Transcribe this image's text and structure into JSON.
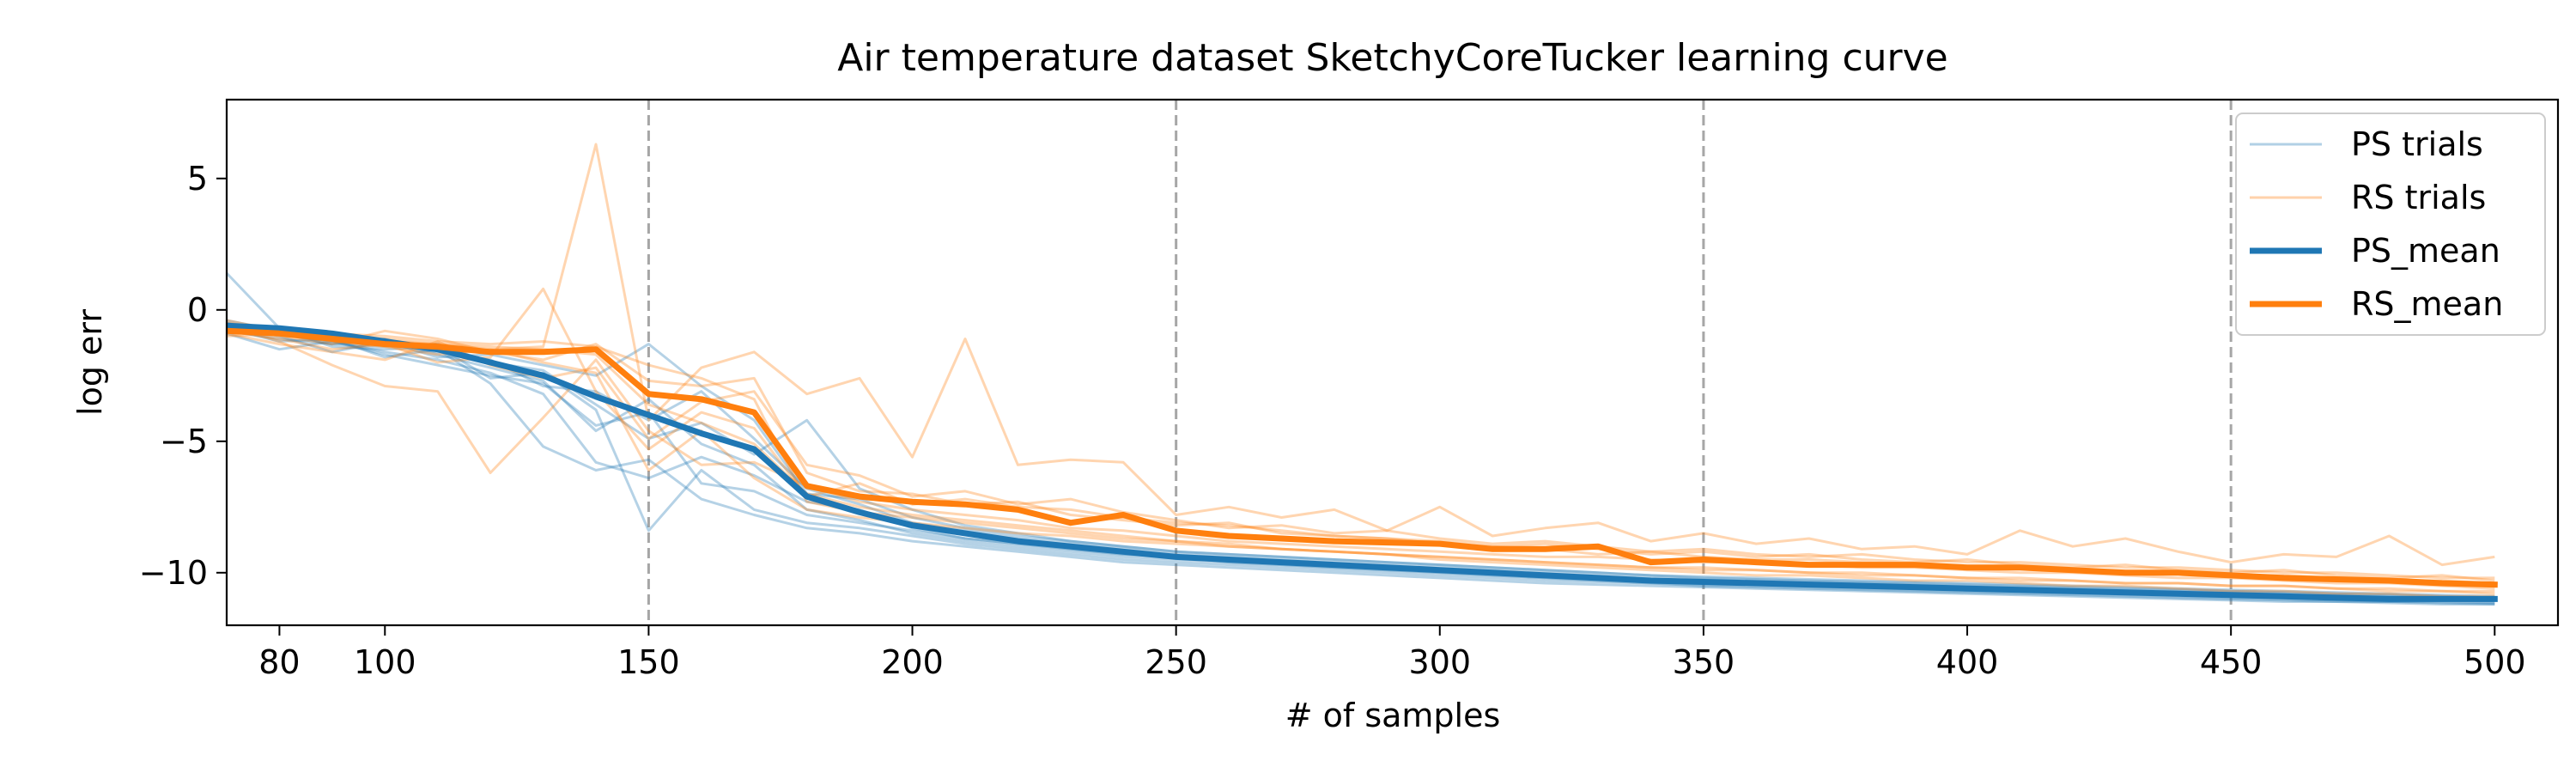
{
  "chart_data": {
    "type": "line",
    "title": "Air temperature dataset SketchyCoreTucker learning curve",
    "xlabel": "# of samples",
    "ylabel": "log err",
    "xlim": [
      70,
      512
    ],
    "ylim": [
      -12,
      8
    ],
    "xticks": [
      80,
      100,
      150,
      200,
      250,
      300,
      350,
      400,
      450,
      500
    ],
    "yticks": [
      5,
      0,
      -5,
      -10
    ],
    "ytick_labels": [
      "5",
      "0",
      "−5",
      "−10"
    ],
    "vlines": [
      150,
      250,
      350,
      450
    ],
    "grid": false,
    "legend_position": "top-right",
    "colors": {
      "ps": "#1f77b4",
      "rs": "#ff7f0e",
      "vline": "#a6a6a6"
    },
    "x": [
      70,
      80,
      90,
      100,
      110,
      120,
      130,
      140,
      150,
      160,
      170,
      180,
      190,
      200,
      210,
      220,
      230,
      240,
      250,
      260,
      270,
      280,
      290,
      300,
      310,
      320,
      330,
      340,
      350,
      360,
      370,
      380,
      390,
      400,
      410,
      420,
      430,
      440,
      450,
      460,
      470,
      480,
      490,
      500
    ],
    "series": [
      {
        "name": "PS_mean",
        "role": "mean",
        "color": "#1f77b4",
        "values": [
          -0.6,
          -0.7,
          -0.9,
          -1.2,
          -1.5,
          -2.0,
          -2.5,
          -3.3,
          -4.0,
          -4.7,
          -5.3,
          -7.1,
          -7.7,
          -8.2,
          -8.5,
          -8.8,
          -9.0,
          -9.2,
          -9.4,
          -9.5,
          -9.6,
          -9.7,
          -9.8,
          -9.9,
          -10.0,
          -10.1,
          -10.2,
          -10.3,
          -10.35,
          -10.4,
          -10.45,
          -10.5,
          -10.55,
          -10.6,
          -10.65,
          -10.7,
          -10.75,
          -10.8,
          -10.85,
          -10.9,
          -10.95,
          -11.0,
          -11.0,
          -11.0
        ]
      },
      {
        "name": "RS_mean",
        "role": "mean",
        "color": "#ff7f0e",
        "values": [
          -0.8,
          -0.9,
          -1.1,
          -1.3,
          -1.4,
          -1.6,
          -1.6,
          -1.5,
          -3.2,
          -3.4,
          -3.9,
          -6.7,
          -7.1,
          -7.3,
          -7.4,
          -7.6,
          -8.1,
          -7.8,
          -8.4,
          -8.6,
          -8.7,
          -8.8,
          -8.85,
          -8.9,
          -9.1,
          -9.1,
          -9.0,
          -9.6,
          -9.5,
          -9.6,
          -9.7,
          -9.7,
          -9.7,
          -9.8,
          -9.8,
          -9.9,
          -10.0,
          -10.0,
          -10.1,
          -10.2,
          -10.25,
          -10.3,
          -10.4,
          -10.45
        ]
      },
      {
        "name": "PS trials",
        "role": "trials",
        "color": "#1f77b4",
        "trials": [
          [
            -0.5,
            -0.9,
            -1.2,
            -1.6,
            -1.9,
            -2.4,
            -3.2,
            -5.8,
            -6.4,
            -5.6,
            -6.3,
            -7.3,
            -7.6,
            -8.3,
            -8.7,
            -8.9,
            -9.1,
            -9.3,
            -9.4,
            -9.6,
            -9.7,
            -9.8,
            -9.9,
            -10.0,
            -10.1,
            -10.2,
            -10.3,
            -10.4,
            -10.45,
            -10.5,
            -10.55,
            -10.6,
            -10.65,
            -10.7,
            -10.75,
            -10.8,
            -10.85,
            -10.9,
            -10.95,
            -11.0,
            -11.05,
            -11.1,
            -11.1,
            -11.15
          ],
          [
            -0.8,
            -1.1,
            -1.3,
            -1.1,
            -1.7,
            -2.2,
            -2.7,
            -4.6,
            -3.4,
            -5.1,
            -5.9,
            -7.6,
            -8.0,
            -8.5,
            -8.8,
            -9.0,
            -9.2,
            -9.4,
            -9.5,
            -9.6,
            -9.7,
            -9.8,
            -9.9,
            -10.0,
            -10.1,
            -10.2,
            -10.25,
            -10.3,
            -10.4,
            -10.45,
            -10.5,
            -10.55,
            -10.6,
            -10.65,
            -10.7,
            -10.75,
            -10.8,
            -10.85,
            -10.9,
            -10.95,
            -11.0,
            -11.0,
            -11.05,
            -11.1
          ],
          [
            -0.4,
            -0.8,
            -1.0,
            -1.3,
            -1.6,
            -1.9,
            -2.9,
            -3.1,
            -4.2,
            -3.1,
            -4.9,
            -6.8,
            -7.4,
            -8.1,
            -8.4,
            -8.7,
            -8.9,
            -9.1,
            -9.3,
            -9.4,
            -9.5,
            -9.6,
            -9.7,
            -9.8,
            -9.9,
            -10.0,
            -10.1,
            -10.2,
            -10.25,
            -10.3,
            -10.35,
            -10.4,
            -10.45,
            -10.5,
            -10.55,
            -10.6,
            -10.65,
            -10.7,
            -10.75,
            -10.8,
            -10.85,
            -10.9,
            -10.95,
            -11.0
          ],
          [
            1.4,
            -0.7,
            -1.4,
            -1.5,
            -1.4,
            -2.6,
            -2.4,
            -3.8,
            -8.4,
            -6.1,
            -7.6,
            -8.1,
            -8.3,
            -8.6,
            -8.9,
            -9.1,
            -9.3,
            -9.5,
            -9.6,
            -9.7,
            -9.8,
            -9.9,
            -10.0,
            -10.1,
            -10.2,
            -10.3,
            -10.35,
            -10.4,
            -10.5,
            -10.55,
            -10.6,
            -10.65,
            -10.7,
            -10.75,
            -10.8,
            -10.85,
            -10.9,
            -10.95,
            -11.0,
            -11.05,
            -11.1,
            -11.1,
            -11.15,
            -11.2
          ],
          [
            -0.6,
            -1.0,
            -1.6,
            -1.2,
            -1.8,
            -1.7,
            -2.1,
            -2.5,
            -1.3,
            -2.9,
            -4.2,
            -7.0,
            -7.2,
            -7.9,
            -8.3,
            -8.6,
            -8.8,
            -9.0,
            -9.2,
            -9.3,
            -9.4,
            -9.5,
            -9.6,
            -9.7,
            -9.8,
            -9.9,
            -10.0,
            -10.1,
            -10.15,
            -10.2,
            -10.25,
            -10.3,
            -10.35,
            -10.4,
            -10.45,
            -10.5,
            -10.55,
            -10.6,
            -10.65,
            -10.7,
            -10.75,
            -10.8,
            -10.85,
            -10.9
          ],
          [
            -0.7,
            -1.2,
            -1.1,
            -1.8,
            -1.5,
            -2.8,
            -5.2,
            -6.1,
            -5.7,
            -7.2,
            -7.8,
            -8.3,
            -8.5,
            -8.8,
            -9.0,
            -9.2,
            -9.4,
            -9.6,
            -9.7,
            -9.8,
            -9.9,
            -10.0,
            -10.1,
            -10.2,
            -10.3,
            -10.4,
            -10.45,
            -10.5,
            -10.55,
            -10.6,
            -10.65,
            -10.7,
            -10.75,
            -10.8,
            -10.85,
            -10.9,
            -10.95,
            -11.0,
            -11.05,
            -11.1,
            -11.1,
            -11.15,
            -11.2,
            -11.2
          ],
          [
            -0.5,
            -0.9,
            -1.3,
            -1.4,
            -1.3,
            -2.0,
            -2.3,
            -3.6,
            -4.9,
            -4.3,
            -5.5,
            -4.2,
            -6.8,
            -7.6,
            -8.2,
            -8.5,
            -8.8,
            -9.0,
            -9.2,
            -9.3,
            -9.4,
            -9.5,
            -9.6,
            -9.7,
            -9.8,
            -9.9,
            -10.0,
            -10.1,
            -10.2,
            -10.25,
            -10.3,
            -10.35,
            -10.4,
            -10.45,
            -10.5,
            -10.55,
            -10.6,
            -10.65,
            -10.7,
            -10.75,
            -10.8,
            -10.85,
            -10.9,
            -10.95
          ],
          [
            -0.9,
            -1.5,
            -1.2,
            -1.7,
            -2.1,
            -2.5,
            -2.8,
            -4.4,
            -3.9,
            -6.6,
            -6.9,
            -7.8,
            -8.1,
            -8.4,
            -8.7,
            -8.9,
            -9.1,
            -9.3,
            -9.4,
            -9.5,
            -9.6,
            -9.7,
            -9.8,
            -9.9,
            -10.0,
            -10.1,
            -10.2,
            -10.3,
            -10.35,
            -10.4,
            -10.45,
            -10.5,
            -10.55,
            -10.6,
            -10.65,
            -10.7,
            -10.75,
            -10.8,
            -10.85,
            -10.9,
            -10.95,
            -11.0,
            -11.0,
            -11.05
          ]
        ]
      },
      {
        "name": "RS trials",
        "role": "trials",
        "color": "#ff7f0e",
        "trials": [
          [
            -0.6,
            -1.2,
            -2.1,
            -2.9,
            -3.1,
            -6.2,
            -4.1,
            -1.9,
            -4.6,
            -5.9,
            -5.8,
            -6.7,
            -7.3,
            -7.6,
            -7.8,
            -8.0,
            -8.3,
            -8.4,
            -8.6,
            -8.8,
            -8.9,
            -9.0,
            -9.1,
            -9.2,
            -9.3,
            -9.4,
            -9.4,
            -9.5,
            -9.6,
            -9.6,
            -9.7,
            -9.8,
            -9.8,
            -9.9,
            -10.0,
            -10.0,
            -10.1,
            -10.2,
            -10.2,
            -10.3,
            -10.4,
            -10.4,
            -10.5,
            -10.6
          ],
          [
            -0.4,
            -0.8,
            -1.0,
            -1.2,
            -1.3,
            -1.5,
            -1.4,
            6.3,
            -4.2,
            -2.2,
            -1.6,
            -3.2,
            -2.6,
            -5.6,
            -1.1,
            -5.9,
            -5.7,
            -5.8,
            -7.8,
            -7.5,
            -7.9,
            -7.6,
            -8.4,
            -7.5,
            -8.6,
            -8.3,
            -8.1,
            -8.8,
            -8.5,
            -8.9,
            -8.7,
            -9.1,
            -9.0,
            -9.3,
            -8.4,
            -9.0,
            -8.7,
            -9.2,
            -9.6,
            -9.3,
            -9.4,
            -8.6,
            -9.7,
            -9.4
          ],
          [
            -0.8,
            -1.1,
            -1.5,
            -1.3,
            -2.0,
            -1.8,
            0.8,
            -3.1,
            -5.3,
            -3.9,
            -4.5,
            -7.1,
            -6.6,
            -7.4,
            -7.2,
            -7.5,
            -7.6,
            -7.9,
            -8.1,
            -8.2,
            -8.4,
            -8.6,
            -8.7,
            -8.9,
            -9.0,
            -9.1,
            -9.3,
            -9.2,
            -9.4,
            -9.5,
            -9.5,
            -9.6,
            -9.7,
            -9.8,
            -9.8,
            -9.9,
            -10.0,
            -10.0,
            -10.1,
            -10.1,
            -10.2,
            -10.3,
            -10.3,
            -10.4
          ],
          [
            -1.0,
            -0.9,
            -1.2,
            -1.4,
            -1.7,
            -1.5,
            -2.0,
            -2.4,
            -6.1,
            -4.6,
            -6.4,
            -7.6,
            -7.9,
            -8.1,
            -8.3,
            -8.5,
            -8.6,
            -8.8,
            -8.9,
            -9.0,
            -9.1,
            -9.2,
            -9.3,
            -9.4,
            -9.5,
            -9.6,
            -9.7,
            -9.8,
            -9.8,
            -9.9,
            -10.0,
            -10.0,
            -10.1,
            -10.2,
            -10.2,
            -10.3,
            -10.4,
            -10.4,
            -10.5,
            -10.5,
            -10.6,
            -10.7,
            -10.7,
            -10.8
          ],
          [
            -0.7,
            -1.0,
            -1.3,
            -0.8,
            -1.1,
            -1.6,
            -1.9,
            -1.3,
            -2.7,
            -2.9,
            -2.6,
            -6.2,
            -6.9,
            -7.0,
            -7.4,
            -7.3,
            -7.8,
            -8.0,
            -8.2,
            -8.1,
            -8.5,
            -8.6,
            -8.7,
            -8.8,
            -9.0,
            -8.9,
            -9.1,
            -9.3,
            -9.2,
            -9.4,
            -9.3,
            -9.5,
            -9.6,
            -9.5,
            -9.7,
            -9.8,
            -9.7,
            -9.9,
            -10.0,
            -9.9,
            -10.1,
            -10.2,
            -10.1,
            -10.3
          ],
          [
            -0.5,
            -0.8,
            -1.0,
            -1.1,
            -1.3,
            -1.4,
            -1.5,
            -1.7,
            -3.6,
            -4.3,
            -5.1,
            -7.0,
            -7.5,
            -7.8,
            -8.0,
            -8.2,
            -8.4,
            -8.6,
            -8.8,
            -8.9,
            -9.1,
            -9.2,
            -9.3,
            -9.5,
            -9.6,
            -9.7,
            -9.8,
            -9.9,
            -10.0,
            -10.1,
            -10.1,
            -10.2,
            -10.3,
            -10.3,
            -10.4,
            -10.5,
            -10.5,
            -10.6,
            -10.7,
            -10.7,
            -10.8,
            -10.8,
            -10.9,
            -10.9
          ],
          [
            -0.9,
            -1.3,
            -1.6,
            -1.9,
            -1.2,
            -2.1,
            -2.6,
            -2.2,
            -4.9,
            -3.5,
            -3.1,
            -5.9,
            -6.3,
            -7.1,
            -6.9,
            -7.4,
            -7.2,
            -7.7,
            -8.0,
            -8.3,
            -8.2,
            -8.5,
            -8.4,
            -8.7,
            -8.9,
            -8.8,
            -9.0,
            -9.2,
            -9.1,
            -9.3,
            -9.4,
            -9.3,
            -9.5,
            -9.6,
            -9.6,
            -9.7,
            -9.8,
            -9.8,
            -9.9,
            -10.0,
            -10.0,
            -10.1,
            -10.2,
            -10.2
          ],
          [
            -0.6,
            -0.7,
            -0.9,
            -1.0,
            -1.2,
            -1.3,
            -1.2,
            -1.4,
            -2.1,
            -2.6,
            -3.4,
            -7.3,
            -7.7,
            -7.9,
            -8.1,
            -8.3,
            -8.5,
            -8.7,
            -8.8,
            -9.0,
            -9.1,
            -9.2,
            -9.3,
            -9.4,
            -9.5,
            -9.6,
            -9.7,
            -9.8,
            -9.9,
            -9.9,
            -10.0,
            -10.1,
            -10.1,
            -10.2,
            -10.3,
            -10.3,
            -10.4,
            -10.4,
            -10.5,
            -10.5,
            -10.6,
            -10.6,
            -10.7,
            -10.7
          ]
        ]
      }
    ],
    "legend": [
      {
        "label": "PS trials",
        "color": "#1f77b4",
        "style": "thin"
      },
      {
        "label": "RS trials",
        "color": "#ff7f0e",
        "style": "thin"
      },
      {
        "label": "PS_mean",
        "color": "#1f77b4",
        "style": "thick"
      },
      {
        "label": "RS_mean",
        "color": "#ff7f0e",
        "style": "thick"
      }
    ]
  }
}
